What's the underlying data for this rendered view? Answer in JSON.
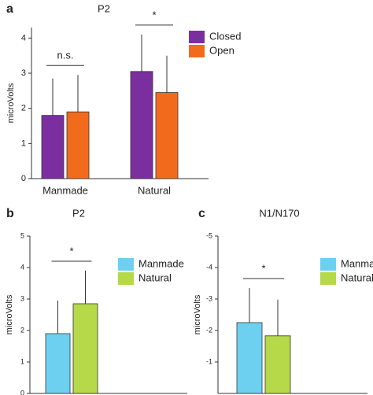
{
  "chart_data": [
    {
      "type": "bar",
      "panel_label": "a",
      "title": "P2",
      "y_label": "microVolts",
      "categories": [
        "Manmade",
        "Natural"
      ],
      "series": [
        {
          "name": "Closed",
          "color": "#7b2f9e",
          "values": [
            1.8,
            3.05
          ],
          "errors": [
            1.05,
            1.05
          ]
        },
        {
          "name": "Open",
          "color": "#f26b1d",
          "values": [
            1.9,
            2.45
          ],
          "errors": [
            1.05,
            1.05
          ]
        }
      ],
      "annotations": [
        "n.s.",
        "*"
      ],
      "ylim": [
        0,
        4.3
      ],
      "yticks": [
        0,
        1,
        2,
        3,
        4
      ]
    },
    {
      "type": "bar",
      "panel_label": "b",
      "title": "P2",
      "y_label": "microVolts",
      "series": [
        {
          "name": "Manmade",
          "color": "#6dd0f0",
          "values": [
            1.9
          ],
          "errors": [
            1.05
          ]
        },
        {
          "name": "Natural",
          "color": "#b5d949",
          "values": [
            2.85
          ],
          "errors": [
            1.05
          ]
        }
      ],
      "annotations": [
        "*"
      ],
      "ylim": [
        0,
        5
      ],
      "yticks": [
        0,
        1,
        2,
        3,
        4,
        5
      ]
    },
    {
      "type": "bar",
      "panel_label": "c",
      "title": "N1/N170",
      "y_label": "microVolts",
      "series": [
        {
          "name": "Manmade",
          "color": "#6dd0f0",
          "values": [
            -2.25
          ],
          "errors": [
            1.1
          ]
        },
        {
          "name": "Natural",
          "color": "#b5d949",
          "values": [
            -1.83
          ],
          "errors": [
            1.15
          ]
        }
      ],
      "annotations": [
        "*"
      ],
      "ylim": [
        0,
        -5
      ],
      "yticks": [
        -1,
        -2,
        -3,
        -4,
        -5
      ]
    }
  ]
}
